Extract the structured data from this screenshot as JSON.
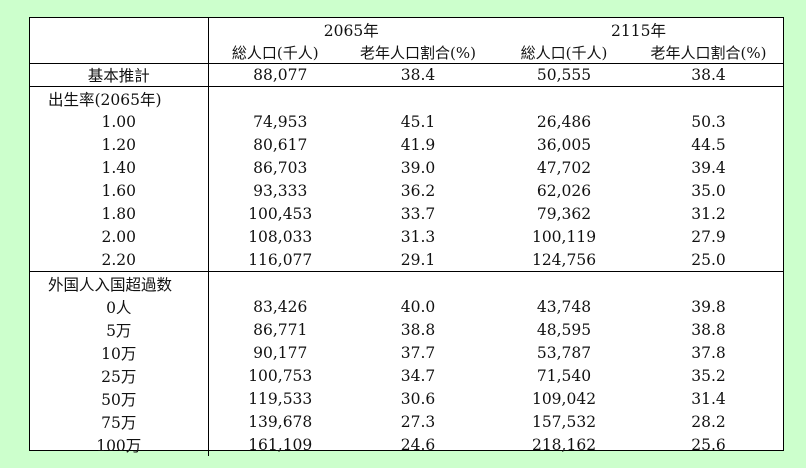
{
  "header": {
    "year_a": "2065年",
    "year_b": "2115年",
    "col_pop": "総人口(千人)",
    "col_ratio": "老年人口割合(%)"
  },
  "base": {
    "label": "基本推計",
    "pop_2065": "88,077",
    "ratio_2065": "38.4",
    "pop_2115": "50,555",
    "ratio_2115": "38.4"
  },
  "sections": [
    {
      "title": "出生率(2065年)",
      "rows": [
        {
          "label": "1.00",
          "pop_2065": "74,953",
          "ratio_2065": "45.1",
          "pop_2115": "26,486",
          "ratio_2115": "50.3"
        },
        {
          "label": "1.20",
          "pop_2065": "80,617",
          "ratio_2065": "41.9",
          "pop_2115": "36,005",
          "ratio_2115": "44.5"
        },
        {
          "label": "1.40",
          "pop_2065": "86,703",
          "ratio_2065": "39.0",
          "pop_2115": "47,702",
          "ratio_2115": "39.4"
        },
        {
          "label": "1.60",
          "pop_2065": "93,333",
          "ratio_2065": "36.2",
          "pop_2115": "62,026",
          "ratio_2115": "35.0"
        },
        {
          "label": "1.80",
          "pop_2065": "100,453",
          "ratio_2065": "33.7",
          "pop_2115": "79,362",
          "ratio_2115": "31.2"
        },
        {
          "label": "2.00",
          "pop_2065": "108,033",
          "ratio_2065": "31.3",
          "pop_2115": "100,119",
          "ratio_2115": "27.9"
        },
        {
          "label": "2.20",
          "pop_2065": "116,077",
          "ratio_2065": "29.1",
          "pop_2115": "124,756",
          "ratio_2115": "25.0"
        }
      ]
    },
    {
      "title": "外国人入国超過数",
      "rows": [
        {
          "label": "0人",
          "pop_2065": "83,426",
          "ratio_2065": "40.0",
          "pop_2115": "43,748",
          "ratio_2115": "39.8"
        },
        {
          "label": "5万",
          "pop_2065": "86,771",
          "ratio_2065": "38.8",
          "pop_2115": "48,595",
          "ratio_2115": "38.8"
        },
        {
          "label": "10万",
          "pop_2065": "90,177",
          "ratio_2065": "37.7",
          "pop_2115": "53,787",
          "ratio_2115": "37.8"
        },
        {
          "label": "25万",
          "pop_2065": "100,753",
          "ratio_2065": "34.7",
          "pop_2115": "71,540",
          "ratio_2115": "35.2"
        },
        {
          "label": "50万",
          "pop_2065": "119,533",
          "ratio_2065": "30.6",
          "pop_2115": "109,042",
          "ratio_2115": "31.4"
        },
        {
          "label": "75万",
          "pop_2065": "139,678",
          "ratio_2065": "27.3",
          "pop_2115": "157,532",
          "ratio_2115": "28.2"
        },
        {
          "label": "100万",
          "pop_2065": "161,109",
          "ratio_2065": "24.6",
          "pop_2115": "218,162",
          "ratio_2115": "25.6"
        }
      ]
    }
  ]
}
